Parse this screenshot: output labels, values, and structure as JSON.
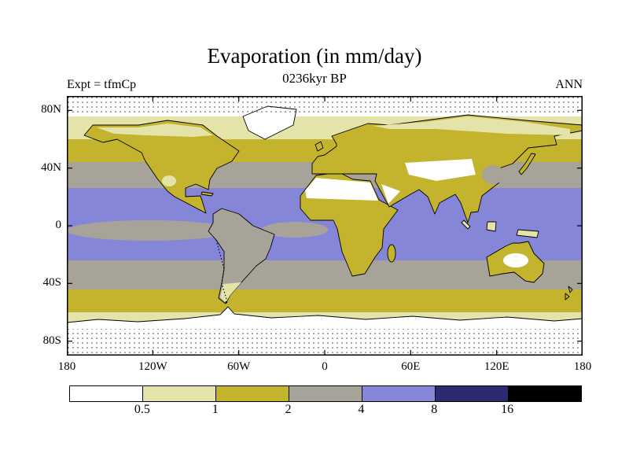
{
  "title": "Evaporation (in mm/day)",
  "subtitle": "0236kyr BP",
  "experiment_label": "Expt = tfmCp",
  "season_label": "ANN",
  "map": {
    "y_axis_ticks": [
      "80N",
      "40N",
      "0",
      "40S",
      "80S"
    ],
    "x_axis_ticks": [
      "180",
      "120W",
      "60W",
      "0",
      "60E",
      "120E",
      "180"
    ]
  },
  "colorbar": {
    "labels": [
      "0.5",
      "1",
      "2",
      "4",
      "8",
      "16"
    ],
    "colors": [
      "#ffffff",
      "#e4e4aa",
      "#c3b32d",
      "#a8a399",
      "#8686d9",
      "#2b2b70",
      "#000000"
    ]
  },
  "chart_data": {
    "type": "heatmap",
    "title": "Evaporation (in mm/day)",
    "subtitle": "0236kyr BP",
    "experiment": "tfmCp",
    "season": "ANN",
    "variable": "Evaporation",
    "units": "mm/day",
    "projection": "equirectangular global map",
    "lon_range_deg": [
      -180,
      180
    ],
    "lat_range_deg": [
      -90,
      90
    ],
    "x_tick_labels": [
      "180",
      "120W",
      "60W",
      "0",
      "60E",
      "120E",
      "180"
    ],
    "y_tick_labels": [
      "80N",
      "40N",
      "0",
      "40S",
      "80S"
    ],
    "contour_levels_mm_per_day": [
      0.5,
      1,
      2,
      4,
      8,
      16
    ],
    "level_bins": [
      {
        "range": "< 0.5",
        "color": "#ffffff"
      },
      {
        "range": "0.5 - 1",
        "color": "#e4e4aa"
      },
      {
        "range": "1 - 2",
        "color": "#c3b32d"
      },
      {
        "range": "2 - 4",
        "color": "#a8a399"
      },
      {
        "range": "4 - 8",
        "color": "#8686d9"
      },
      {
        "range": "8 - 16",
        "color": "#2b2b70"
      },
      {
        "range": "> 16",
        "color": "#000000"
      }
    ],
    "legend": "horizontal colorbar at bottom",
    "approx_zonal_pattern": [
      {
        "lat_band": "90N-76N",
        "value_mm_day": "< 0.5"
      },
      {
        "lat_band": "76N-60N",
        "value_mm_day": "0.5 - 1"
      },
      {
        "lat_band": "60N-44N",
        "value_mm_day": "1 - 2"
      },
      {
        "lat_band": "44N-26N",
        "value_mm_day": "2 - 4"
      },
      {
        "lat_band": "26N-24S",
        "value_mm_day": "4 - 8"
      },
      {
        "lat_band": "24S-44S",
        "value_mm_day": "2 - 4"
      },
      {
        "lat_band": "44S-60S",
        "value_mm_day": "1 - 2"
      },
      {
        "lat_band": "60S-72S",
        "value_mm_day": "0.5 - 1"
      },
      {
        "lat_band": "72S-90S",
        "value_mm_day": "< 0.5"
      }
    ],
    "notable_features": [
      "Subtropical and tropical oceans lie in the 4-8 mm/day (blue) band",
      "Equatorial east Pacific and Atlantic minima of 2-4 mm/day (gray)",
      "Sahara, Arabia and central Asian deserts below 0.5 mm/day (white)",
      "Polar regions below 0.5 mm/day with stippling over ice"
    ]
  }
}
